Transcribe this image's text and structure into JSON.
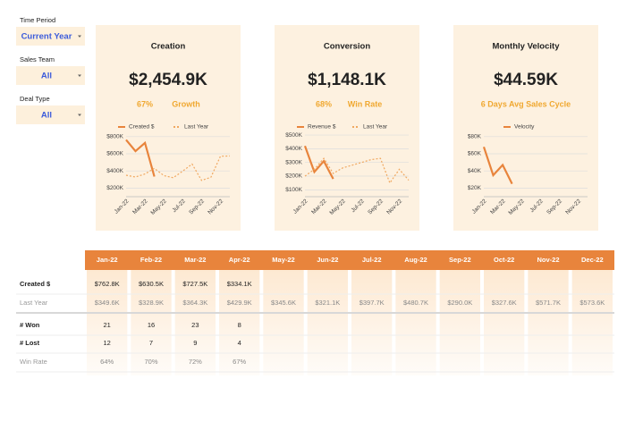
{
  "filters": [
    {
      "label": "Time Period",
      "value": "Current Year"
    },
    {
      "label": "Sales Team",
      "value": "All"
    },
    {
      "label": "Deal Type",
      "value": "All"
    }
  ],
  "cards": [
    {
      "title": "Creation",
      "kpi": "$2,454.9K",
      "pct": "67%",
      "pct_label": "Growth",
      "chart_data": {
        "type": "line",
        "categories": [
          "Jan-22",
          null,
          "Mar-22",
          null,
          "May-22",
          null,
          "Jul-22",
          null,
          "Sep-22",
          null,
          "Nov-22",
          null
        ],
        "series": [
          {
            "name": "Created $",
            "color": "#e8843c",
            "style": "solid",
            "values": [
              762.8,
              630.5,
              727.5,
              334.1,
              null,
              null,
              null,
              null,
              null,
              null,
              null,
              null
            ]
          },
          {
            "name": "Last Year",
            "color": "#f0a860",
            "style": "dotted",
            "values": [
              349.6,
              328.9,
              364.3,
              429.9,
              345.6,
              321.1,
              397.7,
              480.7,
              290.0,
              327.6,
              571.7,
              573.6
            ]
          }
        ],
        "ylim": [
          100,
          850
        ],
        "yticks": [
          {
            "value": 200,
            "label": "$200K"
          },
          {
            "value": 400,
            "label": "$400K"
          },
          {
            "value": 600,
            "label": "$600K"
          },
          {
            "value": 800,
            "label": "$800K"
          }
        ],
        "grid": true
      }
    },
    {
      "title": "Conversion",
      "kpi": "$1,148.1K",
      "pct": "68%",
      "pct_label": "Win Rate",
      "chart_data": {
        "type": "line",
        "categories": [
          "Jan-22",
          null,
          "Mar-22",
          null,
          "May-22",
          null,
          "Jul-22",
          null,
          "Sep-22",
          null,
          "Nov-22",
          null
        ],
        "series": [
          {
            "name": "Revenue $",
            "color": "#e8843c",
            "style": "solid",
            "values": [
              420,
              230,
              310,
              180,
              null,
              null,
              null,
              null,
              null,
              null,
              null,
              null
            ]
          },
          {
            "name": "Last Year",
            "color": "#f0a860",
            "style": "dotted",
            "values": [
              200,
              250,
              330,
              220,
              260,
              280,
              300,
              320,
              330,
              150,
              250,
              170
            ]
          }
        ],
        "ylim": [
          50,
          520
        ],
        "yticks": [
          {
            "value": 100,
            "label": "$100K"
          },
          {
            "value": 200,
            "label": "$200K"
          },
          {
            "value": 300,
            "label": "$300K"
          },
          {
            "value": 400,
            "label": "$400K"
          },
          {
            "value": 500,
            "label": "$500K"
          }
        ],
        "grid": true
      }
    },
    {
      "title": "Monthly Velocity",
      "kpi": "$44.59K",
      "subtitle": "6 Days Avg Sales Cycle",
      "chart_data": {
        "type": "line",
        "categories": [
          "Jan-22",
          null,
          "Mar-22",
          null,
          "May-22",
          null,
          "Jul-22",
          null,
          "Sep-22",
          null,
          "Nov-22",
          null
        ],
        "series": [
          {
            "name": "Velocity",
            "color": "#e8843c",
            "style": "solid",
            "values": [
              68,
              35,
              47,
              25,
              null,
              null,
              null,
              null,
              null,
              null,
              null,
              null
            ]
          }
        ],
        "ylim": [
          10,
          85
        ],
        "yticks": [
          {
            "value": 20,
            "label": "$20K"
          },
          {
            "value": 40,
            "label": "$40K"
          },
          {
            "value": 60,
            "label": "$60K"
          },
          {
            "value": 80,
            "label": "$80K"
          }
        ],
        "grid": true
      }
    }
  ],
  "table": {
    "columns": [
      "Jan-22",
      "Feb-22",
      "Mar-22",
      "Apr-22",
      "May-22",
      "Jun-22",
      "Jul-22",
      "Aug-22",
      "Sep-22",
      "Oct-22",
      "Nov-22",
      "Dec-22"
    ],
    "rows": [
      {
        "label": "Created $",
        "cells": [
          "$762.8K",
          "$630.5K",
          "$727.5K",
          "$334.1K"
        ]
      },
      {
        "label": "Last Year",
        "cells": [
          "$349.6K",
          "$328.9K",
          "$364.3K",
          "$429.9K",
          "$345.6K",
          "$321.1K",
          "$397.7K",
          "$480.7K",
          "$290.0K",
          "$327.6K",
          "$571.7K",
          "$573.6K"
        ]
      },
      {
        "label": "# Won",
        "cells": [
          "21",
          "16",
          "23",
          "8"
        ]
      },
      {
        "label": "# Lost",
        "cells": [
          "12",
          "7",
          "9",
          "4"
        ]
      },
      {
        "label": "Win Rate",
        "cells": [
          "64%",
          "70%",
          "72%",
          "67%"
        ]
      }
    ]
  }
}
